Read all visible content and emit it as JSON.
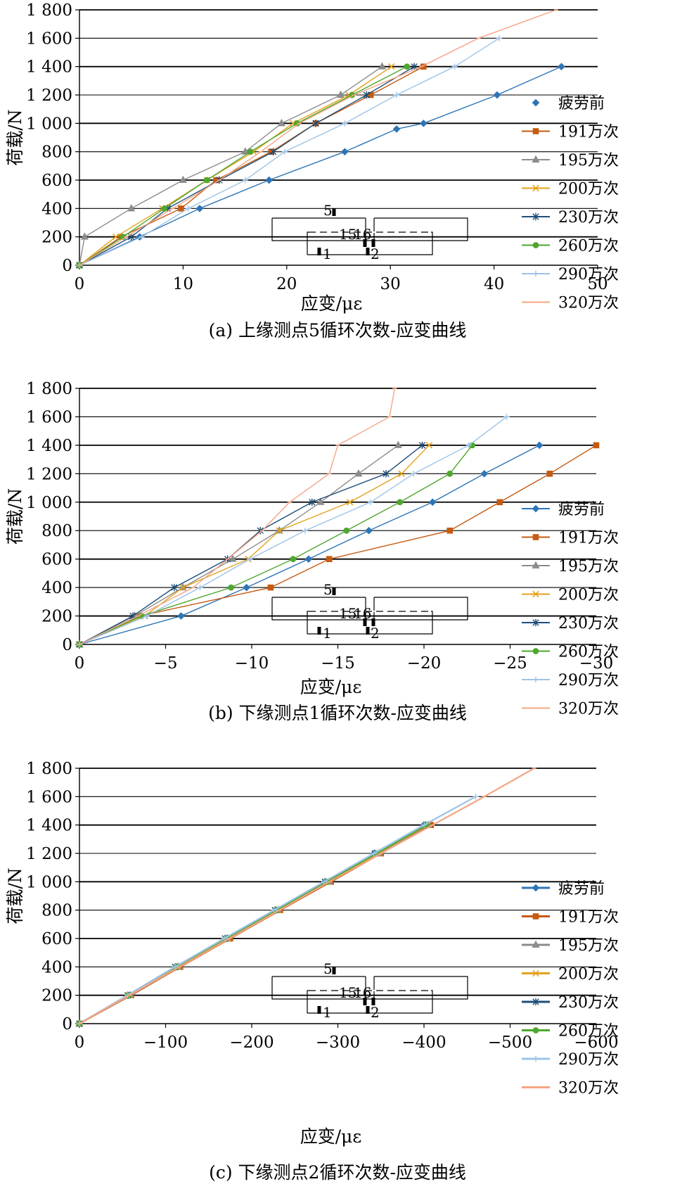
{
  "chart_data": [
    {
      "type": "line",
      "caption": "(a) 上缘测点5循环次数-应变曲线",
      "xlabel": "应变/με",
      "ylabel": "荷载/N",
      "xlim": [
        0,
        50
      ],
      "ylim": [
        0,
        1800
      ],
      "x_ticks": [
        "0",
        "10",
        "20",
        "30",
        "40",
        "50"
      ],
      "y_ticks": [
        "0",
        "200",
        "400",
        "600",
        "800",
        "1 000",
        "1 200",
        "1 400",
        "1 600",
        "1 800"
      ],
      "grid": "horizontal",
      "legend_position": "right",
      "inset_labels": [
        "5",
        "15",
        "16",
        "1",
        "2"
      ],
      "series": [
        {
          "name": "疲劳前",
          "color": "#2e75b6",
          "marker": "diamond",
          "x": [
            0,
            5.8,
            11.6,
            18.3,
            25.6,
            30.6,
            33.2,
            40.3,
            46.5
          ],
          "y": [
            0,
            200,
            400,
            600,
            800,
            960,
            1000,
            1200,
            1400
          ]
        },
        {
          "name": "191万次",
          "color": "#c55a11",
          "marker": "square",
          "x": [
            0,
            4.0,
            9.8,
            13.2,
            18.5,
            22.8,
            28.1,
            33.2
          ],
          "y": [
            0,
            200,
            400,
            600,
            800,
            1000,
            1200,
            1400
          ]
        },
        {
          "name": "195万次",
          "color": "#8c8c8c",
          "marker": "triangle",
          "x": [
            0,
            0.5,
            5.0,
            10.0,
            16.0,
            19.5,
            25.2,
            29.2
          ],
          "y": [
            0,
            200,
            400,
            600,
            800,
            1000,
            1200,
            1400
          ]
        },
        {
          "name": "200万次",
          "color": "#e3a21a",
          "marker": "x",
          "x": [
            0,
            3.5,
            8.0,
            12.3,
            16.8,
            20.6,
            26.0,
            30.1
          ],
          "y": [
            0,
            200,
            400,
            600,
            800,
            1000,
            1200,
            1400
          ]
        },
        {
          "name": "230万次",
          "color": "#1f4e79",
          "marker": "star",
          "x": [
            0,
            5.0,
            8.5,
            13.5,
            18.7,
            22.8,
            27.7,
            32.3
          ],
          "y": [
            0,
            200,
            400,
            600,
            800,
            1000,
            1200,
            1400
          ]
        },
        {
          "name": "260万次",
          "color": "#4ea72e",
          "marker": "circle",
          "x": [
            0,
            4.2,
            8.2,
            12.3,
            16.5,
            21.0,
            26.3,
            31.6
          ],
          "y": [
            0,
            200,
            400,
            600,
            800,
            1000,
            1200,
            1400
          ]
        },
        {
          "name": "290万次",
          "color": "#9dc3e6",
          "marker": "plus",
          "x": [
            0,
            6.0,
            10.5,
            16.0,
            19.8,
            25.6,
            30.6,
            36.2,
            40.5
          ],
          "y": [
            0,
            200,
            400,
            600,
            800,
            1000,
            1200,
            1400,
            1600
          ]
        },
        {
          "name": "320万次",
          "color": "#f4a582",
          "marker": "dash",
          "x": [
            0,
            4.5,
            9.0,
            13.5,
            17.5,
            21.2,
            26.5,
            33.0,
            38.5,
            46.0
          ],
          "y": [
            0,
            200,
            400,
            600,
            800,
            1000,
            1200,
            1400,
            1600,
            1800
          ]
        }
      ]
    },
    {
      "type": "line",
      "caption": "(b) 下缘测点1循环次数-应变曲线",
      "xlabel": "应变/με",
      "ylabel": "荷载/N",
      "xlim": [
        0,
        -30
      ],
      "ylim": [
        0,
        1800
      ],
      "x_ticks": [
        "0",
        "−5",
        "−10",
        "−15",
        "−20",
        "−25",
        "−30"
      ],
      "y_ticks": [
        "0",
        "200",
        "400",
        "600",
        "800",
        "1 000",
        "1 200",
        "1 400",
        "1 600",
        "1 800"
      ],
      "grid": "horizontal",
      "legend_position": "right",
      "inset_labels": [
        "5",
        "15",
        "16",
        "1",
        "2"
      ],
      "series": [
        {
          "name": "疲劳前",
          "color": "#2e75b6",
          "marker": "diamond",
          "x": [
            0,
            -5.9,
            -9.7,
            -13.3,
            -16.8,
            -20.5,
            -23.5,
            -26.7
          ],
          "y": [
            0,
            200,
            400,
            600,
            800,
            1000,
            1200,
            1400
          ]
        },
        {
          "name": "191万次",
          "color": "#c55a11",
          "marker": "square",
          "x": [
            0,
            -3.5,
            -11.1,
            -14.5,
            -21.5,
            -24.4,
            -27.3,
            -30.0
          ],
          "y": [
            0,
            200,
            400,
            600,
            800,
            1000,
            1200,
            1400
          ]
        },
        {
          "name": "195万次",
          "color": "#8c8c8c",
          "marker": "triangle",
          "x": [
            0,
            -3.2,
            -6.0,
            -8.9,
            -11.6,
            -14.0,
            -16.2,
            -18.5
          ],
          "y": [
            0,
            200,
            400,
            600,
            800,
            1000,
            1200,
            1400
          ]
        },
        {
          "name": "200万次",
          "color": "#e3a21a",
          "marker": "x",
          "x": [
            0,
            -3.8,
            -6.0,
            -9.8,
            -11.6,
            -15.7,
            -18.7,
            -20.3
          ],
          "y": [
            0,
            200,
            400,
            600,
            800,
            1000,
            1200,
            1400
          ]
        },
        {
          "name": "230万次",
          "color": "#1f4e79",
          "marker": "star",
          "x": [
            0,
            -3.1,
            -5.5,
            -8.6,
            -10.5,
            -13.5,
            -17.8,
            -19.9
          ],
          "y": [
            0,
            200,
            400,
            600,
            800,
            1000,
            1200,
            1400
          ]
        },
        {
          "name": "260万次",
          "color": "#4ea72e",
          "marker": "circle",
          "x": [
            0,
            -3.6,
            -8.8,
            -12.4,
            -15.5,
            -18.6,
            -21.5,
            -22.8
          ],
          "y": [
            0,
            200,
            400,
            600,
            800,
            1000,
            1200,
            1400
          ]
        },
        {
          "name": "290万次",
          "color": "#9dc3e6",
          "marker": "plus",
          "x": [
            0,
            -3.9,
            -7.0,
            -9.9,
            -13.1,
            -16.9,
            -19.4,
            -22.6,
            -24.8
          ],
          "y": [
            0,
            200,
            400,
            600,
            800,
            1000,
            1200,
            1400,
            1600
          ]
        },
        {
          "name": "320万次",
          "color": "#f4a582",
          "marker": "dash",
          "x": [
            0,
            -3.4,
            -6.6,
            -8.6,
            -10.6,
            -12.2,
            -14.5,
            -15.0,
            -18.0,
            -18.3
          ],
          "y": [
            0,
            200,
            400,
            600,
            800,
            1000,
            1200,
            1400,
            1600,
            1800
          ]
        }
      ]
    },
    {
      "type": "line",
      "caption": "(c) 下缘测点2循环次数-应变曲线",
      "xlabel": "应变/με",
      "ylabel": "荷载/N",
      "xlim": [
        0,
        -600
      ],
      "ylim": [
        0,
        1800
      ],
      "x_ticks": [
        "0",
        "−100",
        "−200",
        "−300",
        "−400",
        "−500",
        "−600"
      ],
      "y_ticks": [
        "0",
        "200",
        "400",
        "600",
        "800",
        "1 000",
        "1 200",
        "1 400",
        "1 600",
        "1 800"
      ],
      "grid": "horizontal",
      "legend_position": "right",
      "inset_labels": [
        "5",
        "15",
        "16",
        "1",
        "2"
      ],
      "series": [
        {
          "name": "疲劳前",
          "color": "#2e75b6",
          "marker": "diamond",
          "x": [
            0,
            -57,
            -113,
            -171,
            -228,
            -285,
            -342,
            -400
          ],
          "y": [
            0,
            200,
            400,
            600,
            800,
            1000,
            1200,
            1400
          ]
        },
        {
          "name": "191万次",
          "color": "#c55a11",
          "marker": "square",
          "x": [
            0,
            -60,
            -117,
            -175,
            -233,
            -292,
            -350,
            -408
          ],
          "y": [
            0,
            200,
            400,
            600,
            800,
            1000,
            1200,
            1400
          ]
        },
        {
          "name": "195万次",
          "color": "#8c8c8c",
          "marker": "triangle",
          "x": [
            0,
            -59,
            -115,
            -172,
            -231,
            -290,
            -348,
            -405
          ],
          "y": [
            0,
            200,
            400,
            600,
            800,
            1000,
            1200,
            1400
          ]
        },
        {
          "name": "200万次",
          "color": "#e3a21a",
          "marker": "x",
          "x": [
            0,
            -58,
            -114,
            -172,
            -230,
            -288,
            -346,
            -404
          ],
          "y": [
            0,
            200,
            400,
            600,
            800,
            1000,
            1200,
            1400
          ]
        },
        {
          "name": "230万次",
          "color": "#1f4e79",
          "marker": "star",
          "x": [
            0,
            -56,
            -111,
            -169,
            -227,
            -285,
            -343,
            -402
          ],
          "y": [
            0,
            200,
            400,
            600,
            800,
            1000,
            1200,
            1400
          ]
        },
        {
          "name": "260万次",
          "color": "#4ea72e",
          "marker": "circle",
          "x": [
            0,
            -57,
            -112,
            -170,
            -229,
            -287,
            -345,
            -403
          ],
          "y": [
            0,
            200,
            400,
            600,
            800,
            1000,
            1200,
            1400
          ]
        },
        {
          "name": "290万次",
          "color": "#9dc3e6",
          "marker": "plus",
          "x": [
            0,
            -56,
            -111,
            -168,
            -226,
            -284,
            -342,
            -400,
            -460
          ],
          "y": [
            0,
            200,
            400,
            600,
            800,
            1000,
            1200,
            1400,
            1600
          ]
        },
        {
          "name": "320万次",
          "color": "#f4a582",
          "marker": "dash",
          "x": [
            0,
            -58,
            -116,
            -174,
            -232,
            -290,
            -350,
            -410,
            -470,
            -528
          ],
          "y": [
            0,
            200,
            400,
            600,
            800,
            1000,
            1200,
            1400,
            1600,
            1800
          ]
        }
      ]
    }
  ]
}
